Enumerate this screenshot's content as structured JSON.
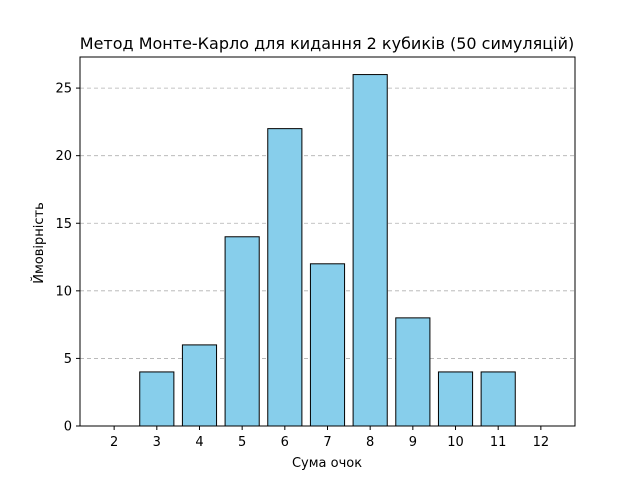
{
  "chart_data": {
    "type": "bar",
    "title": "Метод Монте-Карло для кидання 2 кубиків (50 симуляцій)",
    "xlabel": "Сума очок",
    "ylabel": "Ймовірність",
    "categories": [
      "2",
      "3",
      "4",
      "5",
      "6",
      "7",
      "8",
      "9",
      "10",
      "11",
      "12"
    ],
    "values": [
      0,
      4,
      6,
      14,
      22,
      12,
      26,
      8,
      4,
      4,
      0
    ],
    "yticks": [
      0,
      5,
      10,
      15,
      20,
      25
    ],
    "ylim": [
      0,
      27.3
    ],
    "grid": "y-dashed",
    "bar_color": "#87ceeb",
    "edge_color": "#000000",
    "grid_color": "#b0b0b0"
  }
}
